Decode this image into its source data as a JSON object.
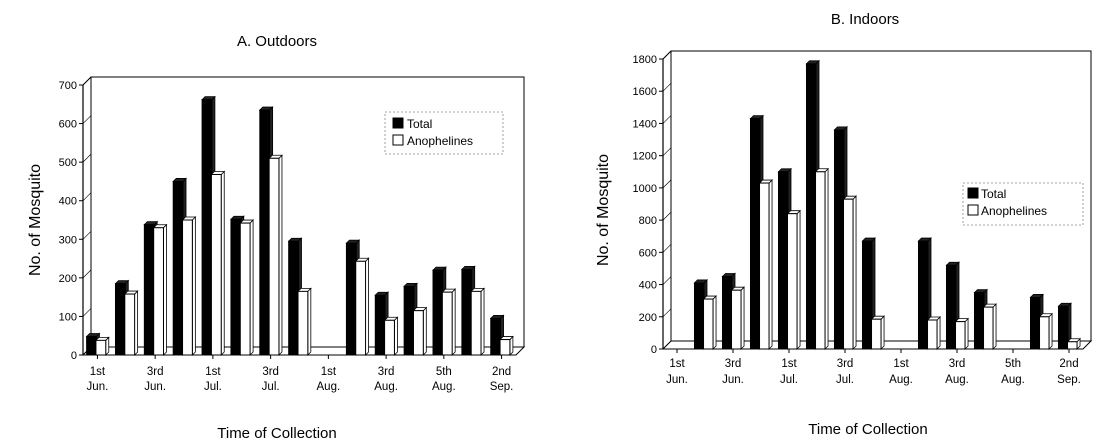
{
  "charts": [
    {
      "title": "A. Outdoors",
      "ylabel": "No. of Mosquito",
      "xlabel": "Time of Collection",
      "legend": {
        "total": "Total",
        "anopheles": "Anophelines"
      }
    },
    {
      "title": "B. Indoors",
      "ylabel": "No. of Mosquito",
      "xlabel": "Time of Collection",
      "legend": {
        "total": "Total",
        "anopheles": "Anophelines"
      }
    }
  ],
  "chart_data": [
    {
      "type": "bar",
      "title": "A. Outdoors",
      "xlabel": "Time of Collection",
      "ylabel": "No. of Mosquito",
      "ylim": [
        0,
        700
      ],
      "yticks": [
        0,
        100,
        200,
        300,
        400,
        500,
        600,
        700
      ],
      "x_tick_labels": [
        {
          "l1": "1st",
          "l2": "Jun."
        },
        {
          "l1": "3rd",
          "l2": "Jun."
        },
        {
          "l1": "1st",
          "l2": "Jul."
        },
        {
          "l1": "3rd",
          "l2": "Jul."
        },
        {
          "l1": "1st",
          "l2": "Aug."
        },
        {
          "l1": "3rd",
          "l2": "Aug."
        },
        {
          "l1": "5th",
          "l2": "Aug."
        },
        {
          "l1": "2nd",
          "l2": "Sep."
        }
      ],
      "series": [
        {
          "name": "Total",
          "color": "#000000",
          "values": [
            48,
            185,
            338,
            450,
            662,
            352,
            635,
            295,
            0,
            290,
            155,
            178,
            220,
            222,
            95
          ]
        },
        {
          "name": "Anophelines",
          "color": "#ffffff",
          "values": [
            38,
            158,
            330,
            350,
            468,
            342,
            510,
            165,
            0,
            243,
            90,
            115,
            163,
            165,
            40
          ]
        }
      ],
      "grid": false,
      "legend_position": "top-right"
    },
    {
      "type": "bar",
      "title": "B. Indoors",
      "xlabel": "Time of Collection",
      "ylabel": "No. of Mosquito",
      "ylim": [
        0,
        1800
      ],
      "yticks": [
        0,
        200,
        400,
        600,
        800,
        1000,
        1200,
        1400,
        1600,
        1800
      ],
      "x_tick_labels": [
        {
          "l1": "1st",
          "l2": "Jun."
        },
        {
          "l1": "3rd",
          "l2": "Jun."
        },
        {
          "l1": "1st",
          "l2": "Jul."
        },
        {
          "l1": "3rd",
          "l2": "Jul."
        },
        {
          "l1": "1st",
          "l2": "Aug."
        },
        {
          "l1": "3rd",
          "l2": "Aug."
        },
        {
          "l1": "5th",
          "l2": "Aug."
        },
        {
          "l1": "2nd",
          "l2": "Sep."
        }
      ],
      "series": [
        {
          "name": "Total",
          "color": "#000000",
          "values": [
            0,
            410,
            450,
            1430,
            1100,
            1770,
            1360,
            670,
            0,
            670,
            520,
            350,
            0,
            320,
            265
          ]
        },
        {
          "name": "Anophelines",
          "color": "#ffffff",
          "values": [
            0,
            310,
            365,
            1030,
            840,
            1100,
            930,
            185,
            0,
            180,
            170,
            260,
            0,
            200,
            45
          ]
        }
      ],
      "grid": false,
      "legend_position": "top-right"
    }
  ]
}
